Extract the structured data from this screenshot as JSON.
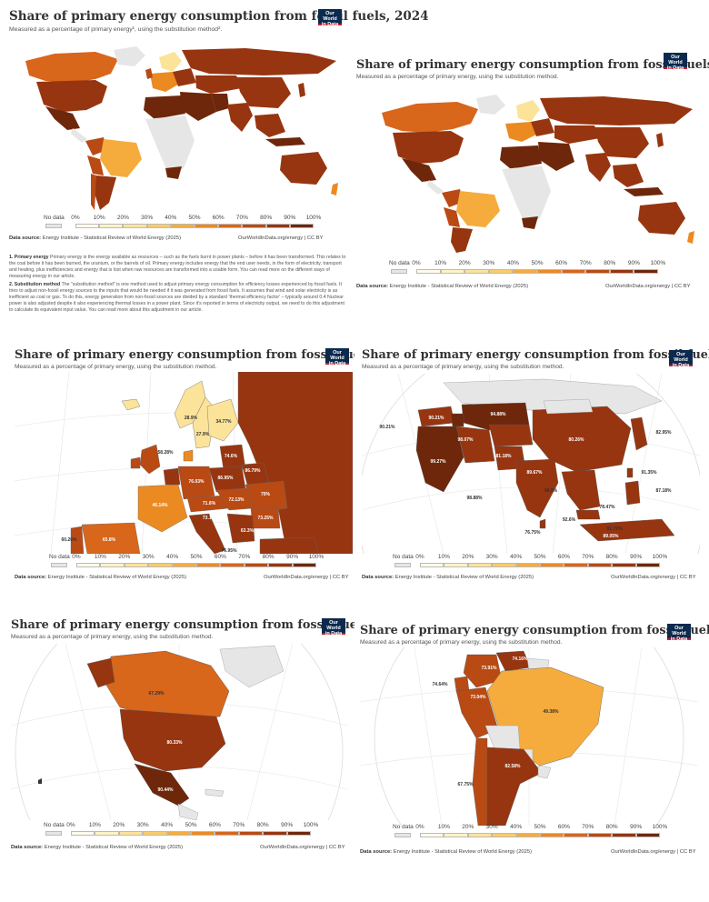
{
  "colors": {
    "bins": [
      "#fdf3c4",
      "#fbe39a",
      "#f9cc68",
      "#f5ac3d",
      "#ec8a22",
      "#d8661b",
      "#b94a14",
      "#973510",
      "#6e270b"
    ],
    "nodata": "#e6e6e6",
    "logo_bg": "#0c2a4e",
    "logo_accent": "#c41a2a"
  },
  "common": {
    "title": "Share of primary energy consumption from fossil fuels, 2024",
    "subtitle": "Measured as a percentage of primary energy, using the substitution method.",
    "logo_line1": "Our World",
    "logo_line2": "in Data",
    "footer_source_label": "Data source:",
    "footer_source": "Energy Institute - Statistical Review of World Energy (2025)",
    "footer_right": "OurWorldInData.org/energy | CC BY",
    "legend": {
      "nodata_label": "No data",
      "ticks": [
        "0%",
        "10%",
        "20%",
        "30%",
        "40%",
        "50%",
        "60%",
        "70%",
        "80%",
        "90%",
        "100%"
      ]
    }
  },
  "panel_world_notes": {
    "subtitle": "Measured as a percentage of primary energy¹, using the substitution method².",
    "note1_label": "1. Primary energy",
    "note1_text": "Primary energy is the energy available as resources – such as the fuels burnt in power plants – before it has been transformed. This relates to the coal before it has been burned, the uranium, or the barrels of oil.",
    "note1_text2": "Primary energy includes energy that the end user needs, in the form of electricity, transport and heating, plus inefficiencies and energy that is lost when raw resources are transformed into a usable form.",
    "note1_text3": "You can read more on the different ways of measuring energy in our article.",
    "note2_label": "2. Substitution method",
    "note2_text": "The \"substitution method\" is one method used to adjust primary energy consumption for efficiency losses experienced by fossil fuels. It tries to adjust non-fossil energy sources to the inputs that would be needed if it was generated from fossil fuels. It assumes that wind and solar electricity is as inefficient as coal or gas.",
    "note2_text2": "To do this, energy generation from non-fossil sources are divided by a standard 'thermal efficiency factor' – typically around 0.4",
    "note2_text3": "Nuclear power is also adjusted despite it also experiencing thermal losses in a power plant. Since it's reported in terms of electricity output, we need to do this adjustment to calculate its equivalent input value.",
    "note2_text4": "You can read more about this adjustment in our article."
  },
  "panel_europe": {
    "labels": [
      "28.9%",
      "34.77%",
      "27.9%",
      "58.28%",
      "74.6%",
      "86.79%",
      "76.03%",
      "86.95%",
      "70%",
      "71.6%",
      "46.14%",
      "72.13%",
      "73.25%",
      "63.3%",
      "60.26%",
      "65.8%",
      "76.95%",
      "73.1%"
    ]
  },
  "panel_asia": {
    "labels": [
      "94.88%",
      "90.21%",
      "90.21%",
      "98.07%",
      "80.26%",
      "82.95%",
      "99.27%",
      "81.18%",
      "89.67%",
      "91.35%",
      "87.18%",
      "98.88%",
      "98.9%",
      "78.47%",
      "76.75%",
      "92.6%",
      "91.72%",
      "89.05%"
    ]
  },
  "panel_namerica": {
    "labels": [
      "67.29%",
      "80.33%",
      "90.44%"
    ]
  },
  "panel_samerica": {
    "labels": [
      "74.16%",
      "73.91%",
      "74.64%",
      "73.04%",
      "49.38%",
      "82.58%",
      "67.75%"
    ]
  }
}
